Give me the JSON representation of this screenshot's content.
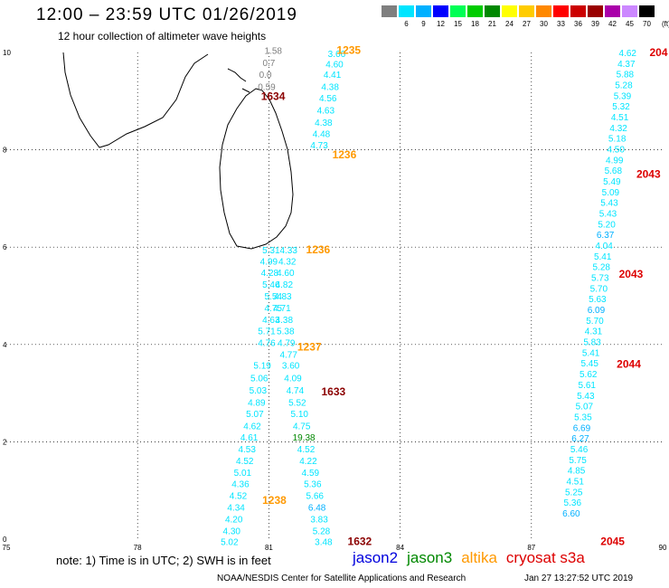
{
  "header": {
    "title": "12:00 – 23:59 UTC 01/26/2019",
    "subtitle": "12 hour collection of altimeter wave heights"
  },
  "legend": {
    "unit": "(ft)",
    "bins": [
      {
        "label": "3",
        "color": "#7f7f7f"
      },
      {
        "label": "6",
        "color": "#00e5ff"
      },
      {
        "label": "9",
        "color": "#00b0ff"
      },
      {
        "label": "12",
        "color": "#0000ff"
      },
      {
        "label": "15",
        "color": "#00ff55"
      },
      {
        "label": "18",
        "color": "#00cc00"
      },
      {
        "label": "21",
        "color": "#008800"
      },
      {
        "label": "24",
        "color": "#ffff00"
      },
      {
        "label": "27",
        "color": "#ffcc00"
      },
      {
        "label": "30",
        "color": "#ff8800"
      },
      {
        "label": "33",
        "color": "#ff0000"
      },
      {
        "label": "36",
        "color": "#cc0000"
      },
      {
        "label": "39",
        "color": "#990000"
      },
      {
        "label": "42",
        "color": "#aa00aa"
      },
      {
        "label": "45",
        "color": "#cc88ff"
      },
      {
        "label": "70",
        "color": "#000000"
      }
    ]
  },
  "map": {
    "lon_ticks": [
      "75",
      "78",
      "81",
      "84",
      "87",
      "90"
    ],
    "lat_ticks": [
      "0",
      "2",
      "4",
      "6",
      "8",
      "10"
    ],
    "land_outline_color": "#000000",
    "satellite_colors": {
      "jason2": "#0000dd",
      "jason3": "#008800",
      "altika": "#ff9900",
      "cryosat": "#dd0000",
      "cryosat_dark": "#8b0000"
    },
    "pass_labels": [
      {
        "text": "1235",
        "sat": "altika",
        "lat": 10.05,
        "lon": 82.55
      },
      {
        "text": "1634",
        "sat": "cryosat_dark",
        "lat": 9.1,
        "lon": 80.82
      },
      {
        "text": "1236",
        "sat": "altika",
        "lat": 7.9,
        "lon": 82.45
      },
      {
        "text": "1236",
        "sat": "altika",
        "lat": 5.95,
        "lon": 81.85
      },
      {
        "text": "1237",
        "sat": "altika",
        "lat": 3.95,
        "lon": 81.65
      },
      {
        "text": "1633",
        "sat": "cryosat_dark",
        "lat": 3.03,
        "lon": 82.2
      },
      {
        "text": "1238",
        "sat": "altika",
        "lat": 0.8,
        "lon": 80.85
      },
      {
        "text": "1632",
        "sat": "cryosat_dark",
        "lat": -0.05,
        "lon": 82.8
      },
      {
        "text": "204",
        "sat": "cryosat",
        "lat": 10.0,
        "lon": 89.7
      },
      {
        "text": "2043",
        "sat": "cryosat",
        "lat": 7.5,
        "lon": 89.4
      },
      {
        "text": "2043",
        "sat": "cryosat",
        "lat": 5.45,
        "lon": 89.0
      },
      {
        "text": "2044",
        "sat": "cryosat",
        "lat": 3.6,
        "lon": 88.95
      },
      {
        "text": "2045",
        "sat": "cryosat",
        "lat": -0.05,
        "lon": 88.58
      }
    ],
    "observations": [
      {
        "lat": 10.05,
        "lon": 81.1,
        "value": "1.58",
        "color": "#7f7f7f"
      },
      {
        "lat": 9.8,
        "lon": 81.0,
        "value": "0.7",
        "color": "#7f7f7f"
      },
      {
        "lat": 9.55,
        "lon": 80.92,
        "value": "0.0",
        "color": "#7f7f7f"
      },
      {
        "lat": 9.3,
        "lon": 80.95,
        "value": "0.59",
        "color": "#7f7f7f"
      },
      {
        "lat": 9.98,
        "lon": 82.55,
        "value": "3.66",
        "color": "#00e5ff"
      },
      {
        "lat": 9.77,
        "lon": 82.5,
        "value": "4.60",
        "color": "#00e5ff"
      },
      {
        "lat": 9.55,
        "lon": 82.45,
        "value": "4.41",
        "color": "#00e5ff"
      },
      {
        "lat": 9.3,
        "lon": 82.4,
        "value": "4.38",
        "color": "#00e5ff"
      },
      {
        "lat": 9.07,
        "lon": 82.35,
        "value": "4.56",
        "color": "#00e5ff"
      },
      {
        "lat": 8.82,
        "lon": 82.3,
        "value": "4.63",
        "color": "#00e5ff"
      },
      {
        "lat": 8.57,
        "lon": 82.25,
        "value": "4.38",
        "color": "#00e5ff"
      },
      {
        "lat": 8.34,
        "lon": 82.2,
        "value": "4.48",
        "color": "#00e5ff"
      },
      {
        "lat": 8.1,
        "lon": 82.15,
        "value": "4.73",
        "color": "#00e5ff"
      },
      {
        "lat": 5.95,
        "lon": 81.05,
        "value": "5.31",
        "color": "#00e5ff"
      },
      {
        "lat": 5.95,
        "lon": 81.45,
        "value": "4.33",
        "color": "#00e5ff"
      },
      {
        "lat": 5.72,
        "lon": 81.0,
        "value": "4.99",
        "color": "#00e5ff"
      },
      {
        "lat": 5.72,
        "lon": 81.42,
        "value": "4.32",
        "color": "#00e5ff"
      },
      {
        "lat": 5.48,
        "lon": 81.02,
        "value": "4.28",
        "color": "#00e5ff"
      },
      {
        "lat": 5.48,
        "lon": 81.38,
        "value": "4.60",
        "color": "#00e5ff"
      },
      {
        "lat": 5.24,
        "lon": 81.05,
        "value": "5.46",
        "color": "#00e5ff"
      },
      {
        "lat": 5.24,
        "lon": 81.35,
        "value": "4.82",
        "color": "#00e5ff"
      },
      {
        "lat": 5.0,
        "lon": 81.1,
        "value": "5.54",
        "color": "#00e5ff"
      },
      {
        "lat": 5.0,
        "lon": 81.32,
        "value": "4.83",
        "color": "#00e5ff"
      },
      {
        "lat": 4.76,
        "lon": 81.1,
        "value": "4.75",
        "color": "#00e5ff"
      },
      {
        "lat": 4.76,
        "lon": 81.3,
        "value": "4.71",
        "color": "#00e5ff"
      },
      {
        "lat": 4.52,
        "lon": 81.05,
        "value": "4.63",
        "color": "#00e5ff"
      },
      {
        "lat": 4.52,
        "lon": 81.35,
        "value": "4.38",
        "color": "#00e5ff"
      },
      {
        "lat": 4.28,
        "lon": 80.95,
        "value": "5.71",
        "color": "#00e5ff"
      },
      {
        "lat": 4.28,
        "lon": 81.38,
        "value": "5.38",
        "color": "#00e5ff"
      },
      {
        "lat": 4.04,
        "lon": 80.95,
        "value": "4.76",
        "color": "#00e5ff"
      },
      {
        "lat": 4.04,
        "lon": 81.4,
        "value": "4.79",
        "color": "#00e5ff"
      },
      {
        "lat": 3.8,
        "lon": 81.45,
        "value": "4.77",
        "color": "#00e5ff"
      },
      {
        "lat": 3.58,
        "lon": 80.85,
        "value": "5.19",
        "color": "#00e5ff"
      },
      {
        "lat": 3.58,
        "lon": 81.5,
        "value": "3.60",
        "color": "#00e5ff"
      },
      {
        "lat": 3.32,
        "lon": 80.78,
        "value": "5.06",
        "color": "#00e5ff"
      },
      {
        "lat": 3.32,
        "lon": 81.55,
        "value": "4.09",
        "color": "#00e5ff"
      },
      {
        "lat": 3.07,
        "lon": 80.75,
        "value": "5.03",
        "color": "#00e5ff"
      },
      {
        "lat": 3.07,
        "lon": 81.6,
        "value": "4.74",
        "color": "#00e5ff"
      },
      {
        "lat": 2.82,
        "lon": 80.72,
        "value": "4.89",
        "color": "#00e5ff"
      },
      {
        "lat": 2.82,
        "lon": 81.65,
        "value": "5.52",
        "color": "#00e5ff"
      },
      {
        "lat": 2.58,
        "lon": 80.68,
        "value": "5.07",
        "color": "#00e5ff"
      },
      {
        "lat": 2.58,
        "lon": 81.7,
        "value": "5.10",
        "color": "#00e5ff"
      },
      {
        "lat": 2.33,
        "lon": 80.62,
        "value": "4.62",
        "color": "#00e5ff"
      },
      {
        "lat": 2.33,
        "lon": 81.75,
        "value": "4.75",
        "color": "#00e5ff"
      },
      {
        "lat": 2.1,
        "lon": 80.55,
        "value": "4.61",
        "color": "#00e5ff"
      },
      {
        "lat": 2.1,
        "lon": 81.8,
        "value": "19.38",
        "color": "#008800"
      },
      {
        "lat": 1.86,
        "lon": 80.5,
        "value": "4.53",
        "color": "#00e5ff"
      },
      {
        "lat": 1.86,
        "lon": 81.85,
        "value": "4.52",
        "color": "#00e5ff"
      },
      {
        "lat": 1.62,
        "lon": 80.45,
        "value": "4.52",
        "color": "#00e5ff"
      },
      {
        "lat": 1.62,
        "lon": 81.9,
        "value": "4.22",
        "color": "#00e5ff"
      },
      {
        "lat": 1.38,
        "lon": 80.4,
        "value": "5.01",
        "color": "#00e5ff"
      },
      {
        "lat": 1.38,
        "lon": 81.95,
        "value": "4.59",
        "color": "#00e5ff"
      },
      {
        "lat": 1.14,
        "lon": 80.35,
        "value": "4.36",
        "color": "#00e5ff"
      },
      {
        "lat": 1.14,
        "lon": 82.0,
        "value": "5.36",
        "color": "#00e5ff"
      },
      {
        "lat": 0.9,
        "lon": 80.3,
        "value": "4.52",
        "color": "#00e5ff"
      },
      {
        "lat": 0.9,
        "lon": 82.05,
        "value": "5.66",
        "color": "#00e5ff"
      },
      {
        "lat": 0.66,
        "lon": 80.25,
        "value": "4.34",
        "color": "#00e5ff"
      },
      {
        "lat": 0.66,
        "lon": 82.1,
        "value": "6.48",
        "color": "#00b0ff"
      },
      {
        "lat": 0.42,
        "lon": 80.2,
        "value": "4.20",
        "color": "#00e5ff"
      },
      {
        "lat": 0.42,
        "lon": 82.15,
        "value": "3.83",
        "color": "#00e5ff"
      },
      {
        "lat": 0.18,
        "lon": 80.15,
        "value": "4.30",
        "color": "#00e5ff"
      },
      {
        "lat": 0.18,
        "lon": 82.2,
        "value": "5.28",
        "color": "#00e5ff"
      },
      {
        "lat": -0.05,
        "lon": 80.1,
        "value": "5.02",
        "color": "#00e5ff"
      },
      {
        "lat": -0.05,
        "lon": 82.25,
        "value": "3.48",
        "color": "#00e5ff"
      },
      {
        "lat": 10.0,
        "lon": 89.2,
        "value": "4.62",
        "color": "#00e5ff"
      },
      {
        "lat": 9.78,
        "lon": 89.17,
        "value": "4.37",
        "color": "#00e5ff"
      },
      {
        "lat": 9.56,
        "lon": 89.14,
        "value": "5.88",
        "color": "#00e5ff"
      },
      {
        "lat": 9.34,
        "lon": 89.11,
        "value": "5.28",
        "color": "#00e5ff"
      },
      {
        "lat": 9.12,
        "lon": 89.08,
        "value": "5.39",
        "color": "#00e5ff"
      },
      {
        "lat": 8.9,
        "lon": 89.05,
        "value": "5.32",
        "color": "#00e5ff"
      },
      {
        "lat": 8.68,
        "lon": 89.02,
        "value": "4.51",
        "color": "#00e5ff"
      },
      {
        "lat": 8.46,
        "lon": 88.99,
        "value": "4.32",
        "color": "#00e5ff"
      },
      {
        "lat": 8.24,
        "lon": 88.96,
        "value": "5.18",
        "color": "#00e5ff"
      },
      {
        "lat": 8.02,
        "lon": 88.93,
        "value": "4.50",
        "color": "#00e5ff"
      },
      {
        "lat": 7.8,
        "lon": 88.9,
        "value": "4.99",
        "color": "#00e5ff"
      },
      {
        "lat": 7.58,
        "lon": 88.87,
        "value": "5.68",
        "color": "#00e5ff"
      },
      {
        "lat": 7.36,
        "lon": 88.84,
        "value": "5.49",
        "color": "#00e5ff"
      },
      {
        "lat": 7.14,
        "lon": 88.81,
        "value": "5.09",
        "color": "#00e5ff"
      },
      {
        "lat": 6.92,
        "lon": 88.78,
        "value": "5.43",
        "color": "#00e5ff"
      },
      {
        "lat": 6.7,
        "lon": 88.75,
        "value": "5.43",
        "color": "#00e5ff"
      },
      {
        "lat": 6.48,
        "lon": 88.72,
        "value": "5.20",
        "color": "#00e5ff"
      },
      {
        "lat": 6.26,
        "lon": 88.69,
        "value": "6.37",
        "color": "#00b0ff"
      },
      {
        "lat": 6.04,
        "lon": 88.66,
        "value": "4.04",
        "color": "#00e5ff"
      },
      {
        "lat": 5.82,
        "lon": 88.63,
        "value": "5.41",
        "color": "#00e5ff"
      },
      {
        "lat": 5.6,
        "lon": 88.6,
        "value": "5.28",
        "color": "#00e5ff"
      },
      {
        "lat": 5.38,
        "lon": 88.57,
        "value": "5.73",
        "color": "#00e5ff"
      },
      {
        "lat": 5.16,
        "lon": 88.54,
        "value": "5.70",
        "color": "#00e5ff"
      },
      {
        "lat": 4.94,
        "lon": 88.51,
        "value": "5.63",
        "color": "#00e5ff"
      },
      {
        "lat": 4.72,
        "lon": 88.48,
        "value": "6.09",
        "color": "#00b0ff"
      },
      {
        "lat": 4.5,
        "lon": 88.45,
        "value": "5.70",
        "color": "#00e5ff"
      },
      {
        "lat": 4.28,
        "lon": 88.42,
        "value": "4.31",
        "color": "#00e5ff"
      },
      {
        "lat": 4.06,
        "lon": 88.39,
        "value": "5.83",
        "color": "#00e5ff"
      },
      {
        "lat": 3.84,
        "lon": 88.36,
        "value": "5.41",
        "color": "#00e5ff"
      },
      {
        "lat": 3.62,
        "lon": 88.33,
        "value": "5.45",
        "color": "#00e5ff"
      },
      {
        "lat": 3.4,
        "lon": 88.3,
        "value": "5.62",
        "color": "#00e5ff"
      },
      {
        "lat": 3.18,
        "lon": 88.27,
        "value": "5.61",
        "color": "#00e5ff"
      },
      {
        "lat": 2.96,
        "lon": 88.24,
        "value": "5.43",
        "color": "#00e5ff"
      },
      {
        "lat": 2.74,
        "lon": 88.21,
        "value": "5.07",
        "color": "#00e5ff"
      },
      {
        "lat": 2.52,
        "lon": 88.18,
        "value": "5.35",
        "color": "#00e5ff"
      },
      {
        "lat": 2.3,
        "lon": 88.15,
        "value": "6.69",
        "color": "#00b0ff"
      },
      {
        "lat": 2.08,
        "lon": 88.12,
        "value": "6.27",
        "color": "#00b0ff"
      },
      {
        "lat": 1.86,
        "lon": 88.09,
        "value": "5.46",
        "color": "#00e5ff"
      },
      {
        "lat": 1.64,
        "lon": 88.06,
        "value": "5.75",
        "color": "#00e5ff"
      },
      {
        "lat": 1.42,
        "lon": 88.03,
        "value": "4.85",
        "color": "#00e5ff"
      },
      {
        "lat": 1.2,
        "lon": 88.0,
        "value": "4.51",
        "color": "#00e5ff"
      },
      {
        "lat": 0.98,
        "lon": 87.97,
        "value": "5.25",
        "color": "#00e5ff"
      },
      {
        "lat": 0.76,
        "lon": 87.94,
        "value": "5.36",
        "color": "#00e5ff"
      },
      {
        "lat": 0.54,
        "lon": 87.91,
        "value": "6.60",
        "color": "#00b0ff"
      }
    ]
  },
  "footer": {
    "note": "note:  1) Time is in UTC;  2) SWH is in feet",
    "satellites": [
      {
        "name": "jason2",
        "color": "#0000dd"
      },
      {
        "name": "jason3",
        "color": "#008800"
      },
      {
        "name": "altika",
        "color": "#ff9900"
      },
      {
        "name": "cryosat s3a",
        "color": "#dd0000"
      }
    ],
    "credit": "NOAA/NESDIS Center for Satellite Applications and Research",
    "timestamp": "Jan 27 13:27:52 UTC 2019"
  }
}
